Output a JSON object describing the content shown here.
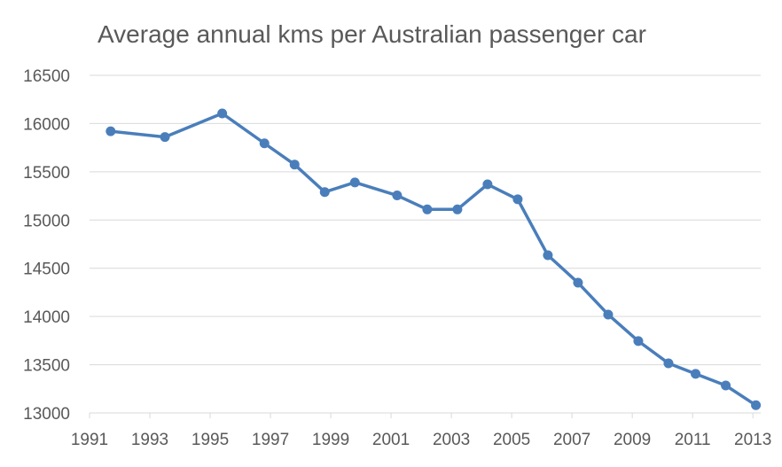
{
  "chart_data": {
    "type": "line",
    "title": "Average annual kms per Australian passenger car",
    "xlabel": "",
    "ylabel": "",
    "xlim": [
      1991,
      2013.26
    ],
    "ylim": [
      13000,
      16500
    ],
    "grid": true,
    "legend": "none",
    "x_ticks": [
      "1991",
      "1993",
      "1995",
      "1997",
      "1999",
      "2001",
      "2003",
      "2005",
      "2007",
      "2009",
      "2011",
      "2013"
    ],
    "y_ticks": [
      "13000",
      "13500",
      "14000",
      "14500",
      "15000",
      "15500",
      "16000",
      "16500"
    ],
    "color": "#4a7ebb",
    "series": [
      {
        "name": "Average annual kms",
        "x": [
          1991.7,
          1993.5,
          1995.4,
          1996.8,
          1997.8,
          1998.8,
          1999.8,
          2001.2,
          2002.2,
          2003.2,
          2004.2,
          2005.2,
          2006.2,
          2007.2,
          2008.2,
          2009.2,
          2010.2,
          2011.1,
          2012.1,
          2013.1
        ],
        "values": [
          15920,
          15860,
          16105,
          15795,
          15575,
          15290,
          15390,
          15255,
          15110,
          15110,
          15370,
          15215,
          14635,
          14350,
          14020,
          13745,
          13515,
          13405,
          13285,
          13080
        ]
      }
    ]
  }
}
